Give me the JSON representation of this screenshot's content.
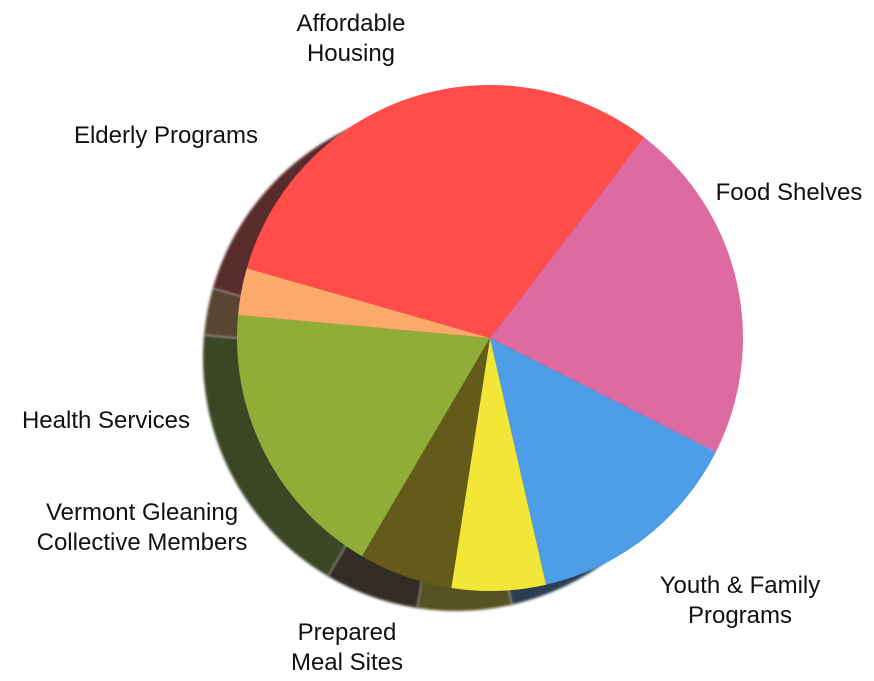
{
  "chart_data": {
    "type": "pie",
    "title": "",
    "legend": "none",
    "slices": [
      {
        "key": "food_shelves",
        "label_lines": [
          "Food Shelves"
        ],
        "value": 31,
        "color": "#FF4D4A"
      },
      {
        "key": "youth_family",
        "label_lines": [
          "Youth & Family",
          "Programs"
        ],
        "value": 22,
        "color": "#DD6BA1"
      },
      {
        "key": "prepared_meal",
        "label_lines": [
          "Prepared",
          "Meal Sites"
        ],
        "value": 14,
        "color": "#4D9DE8"
      },
      {
        "key": "vgc_members",
        "label_lines": [
          "Vermont Gleaning",
          "Collective Members"
        ],
        "value": 6,
        "color": "#F2E637"
      },
      {
        "key": "health",
        "label_lines": [
          "Health Services"
        ],
        "value": 6,
        "color": "#645A1A"
      },
      {
        "key": "elderly",
        "label_lines": [
          "Elderly Programs"
        ],
        "value": 18,
        "color": "#8FAD37"
      },
      {
        "key": "housing",
        "label_lines": [
          "Affordable",
          "Housing"
        ],
        "value": 3,
        "color": "#FCAA6C"
      }
    ]
  }
}
